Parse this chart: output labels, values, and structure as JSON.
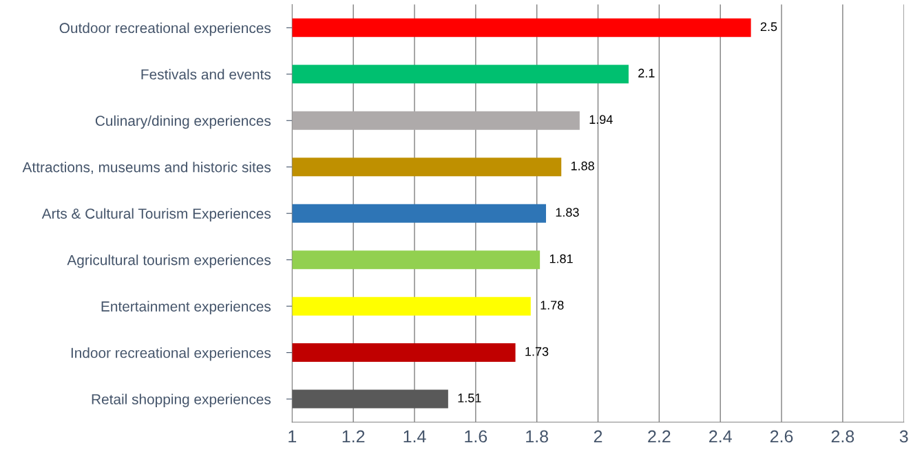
{
  "chart_data": {
    "type": "bar",
    "orientation": "horizontal",
    "categories": [
      "Outdoor recreational experiences",
      "Festivals and events",
      "Culinary/dining experiences",
      "Attractions, museums and historic sites",
      "Arts & Cultural Tourism Experiences",
      "Agricultural tourism experiences",
      "Entertainment experiences",
      "Indoor recreational experiences",
      "Retail shopping experiences"
    ],
    "values": [
      2.5,
      2.1,
      1.94,
      1.88,
      1.83,
      1.81,
      1.78,
      1.73,
      1.51
    ],
    "colors": [
      "#ff0000",
      "#00c070",
      "#aeaaaa",
      "#bf9000",
      "#2e75b6",
      "#92d050",
      "#ffff00",
      "#c00000",
      "#595959"
    ],
    "xlim": [
      1,
      3
    ],
    "xticks": [
      1,
      1.2,
      1.4,
      1.6,
      1.8,
      2,
      2.2,
      2.4,
      2.6,
      2.8,
      3
    ],
    "grid": "x",
    "data_labels": true
  }
}
